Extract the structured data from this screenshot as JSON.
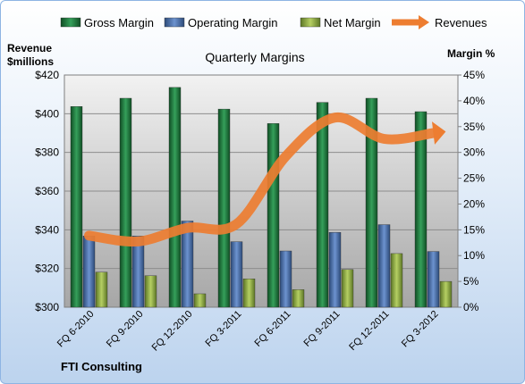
{
  "chart_data": {
    "type": "bar",
    "title": "Quarterly Margins",
    "categories": [
      "FQ 6-2010",
      "FQ 9-2010",
      "FQ 12-2010",
      "FQ 3-2011",
      "FQ 6-2011",
      "FQ 9-2011",
      "FQ 12-2011",
      "FQ 3-2012"
    ],
    "series": [
      {
        "name": "Gross Margin",
        "axis": "right",
        "type": "bar",
        "color": "#1e7a3e",
        "values": [
          38.9,
          40.5,
          42.6,
          38.4,
          35.6,
          39.7,
          40.5,
          37.9
        ]
      },
      {
        "name": "Operating Margin",
        "axis": "right",
        "type": "bar",
        "color": "#4a6fa5",
        "values": [
          13.8,
          13.8,
          16.7,
          12.7,
          10.9,
          14.5,
          16.0,
          10.8
        ]
      },
      {
        "name": "Net Margin",
        "axis": "right",
        "type": "bar",
        "color": "#8fae3e",
        "values": [
          6.8,
          6.1,
          2.6,
          5.5,
          3.4,
          7.3,
          10.4,
          5.0
        ]
      },
      {
        "name": "Revenues",
        "axis": "left",
        "type": "line",
        "color": "#ed7d31",
        "values": [
          337,
          334,
          341,
          343,
          378,
          398,
          387,
          390
        ]
      }
    ],
    "ylabel_left": "Revenue\n$millions",
    "ylabel_right": "Margin %",
    "ylim_left": [
      300,
      420
    ],
    "ylim_right": [
      0,
      45
    ],
    "left_ticks": [
      "$300",
      "$320",
      "$340",
      "$360",
      "$380",
      "$400",
      "$420"
    ],
    "right_ticks": [
      "0%",
      "5%",
      "10%",
      "15%",
      "20%",
      "25%",
      "30%",
      "35%",
      "40%",
      "45%"
    ],
    "legend_position": "top",
    "grid": true,
    "source": "FTI Consulting"
  }
}
